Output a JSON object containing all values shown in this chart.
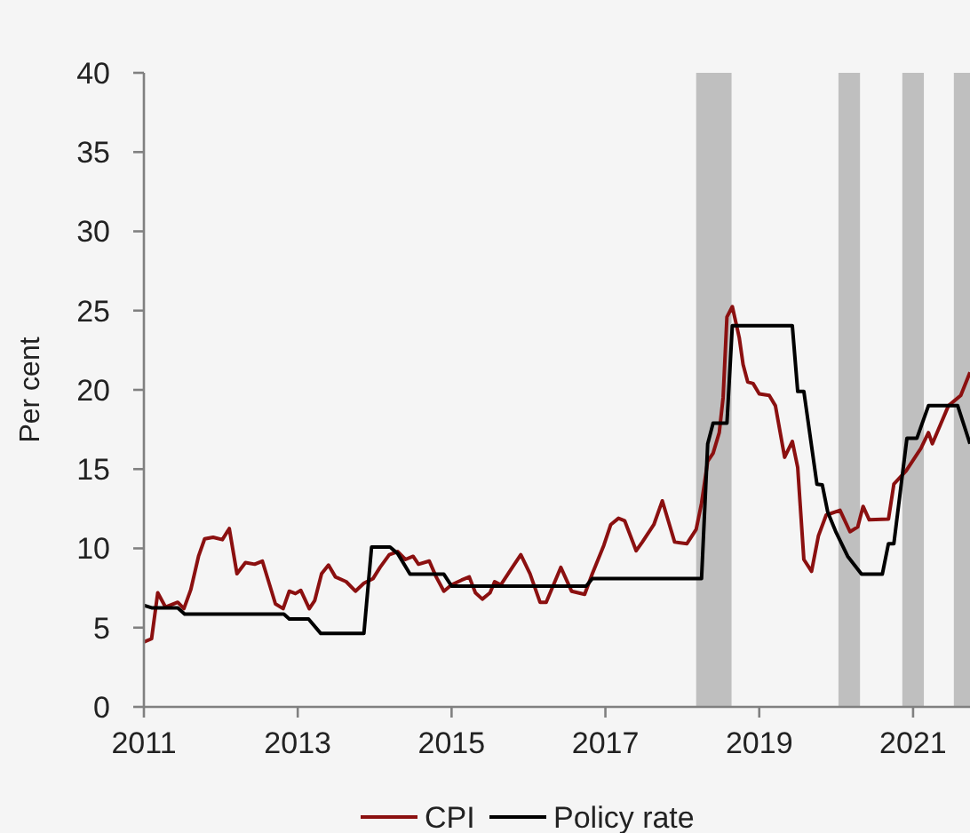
{
  "chart_data": {
    "type": "line",
    "ylabel": "Per cent",
    "xlim": [
      2011,
      2021.74
    ],
    "xticks": [
      2011,
      2013,
      2015,
      2017,
      2019,
      2021
    ],
    "ylim": [
      0,
      40
    ],
    "yticks": [
      0,
      5,
      10,
      15,
      20,
      25,
      30,
      35,
      40
    ],
    "grid": false,
    "legend": "bottom",
    "bands": [
      {
        "axis": "x",
        "from": 2018.18,
        "to": 2018.64,
        "color": "#bfbfbf"
      },
      {
        "axis": "x",
        "from": 2020.03,
        "to": 2020.31,
        "color": "#bfbfbf"
      },
      {
        "axis": "x",
        "from": 2020.86,
        "to": 2021.14,
        "color": "#bfbfbf"
      },
      {
        "axis": "x",
        "from": 2021.53,
        "to": 2021.74,
        "color": "#bfbfbf"
      }
    ],
    "series": [
      {
        "name": "CPI",
        "color": "#8b1010",
        "x": [
          2011.0,
          2011.1,
          2011.18,
          2011.28,
          2011.44,
          2011.52,
          2011.61,
          2011.71,
          2011.79,
          2011.9,
          2012.02,
          2012.11,
          2012.21,
          2012.32,
          2012.44,
          2012.54,
          2012.71,
          2012.81,
          2012.89,
          2012.97,
          2013.04,
          2013.15,
          2013.22,
          2013.31,
          2013.4,
          2013.49,
          2013.63,
          2013.75,
          2013.86,
          2013.98,
          2014.07,
          2014.19,
          2014.3,
          2014.4,
          2014.5,
          2014.57,
          2014.71,
          2014.8,
          2014.9,
          2015.0,
          2015.13,
          2015.23,
          2015.31,
          2015.4,
          2015.5,
          2015.56,
          2015.64,
          2015.79,
          2015.9,
          2016.02,
          2016.15,
          2016.23,
          2016.42,
          2016.56,
          2016.73,
          2016.83,
          2016.98,
          2017.07,
          2017.17,
          2017.25,
          2017.4,
          2017.48,
          2017.63,
          2017.74,
          2017.9,
          2018.06,
          2018.18,
          2018.25,
          2018.33,
          2018.4,
          2018.48,
          2018.53,
          2018.58,
          2018.65,
          2018.74,
          2018.79,
          2018.85,
          2018.92,
          2019.0,
          2019.13,
          2019.21,
          2019.33,
          2019.43,
          2019.5,
          2019.58,
          2019.68,
          2019.77,
          2019.87,
          2020.05,
          2020.18,
          2020.28,
          2020.35,
          2020.43,
          2020.68,
          2020.75,
          2020.91,
          2021.1,
          2021.2,
          2021.25,
          2021.46,
          2021.62,
          2021.74
        ],
        "values": [
          4.1,
          4.3,
          7.2,
          6.3,
          6.6,
          6.2,
          7.4,
          9.5,
          10.6,
          10.7,
          10.55,
          11.25,
          8.4,
          9.1,
          9.0,
          9.2,
          6.5,
          6.2,
          7.3,
          7.15,
          7.35,
          6.2,
          6.7,
          8.4,
          8.95,
          8.2,
          7.9,
          7.3,
          7.8,
          8.1,
          8.8,
          9.6,
          9.8,
          9.3,
          9.5,
          9.0,
          9.2,
          8.2,
          7.3,
          7.7,
          8.0,
          8.2,
          7.2,
          6.8,
          7.2,
          7.9,
          7.7,
          8.8,
          9.6,
          8.4,
          6.6,
          6.6,
          8.8,
          7.3,
          7.1,
          8.4,
          10.2,
          11.5,
          11.9,
          11.75,
          9.85,
          10.4,
          11.5,
          13.0,
          10.4,
          10.3,
          11.2,
          12.85,
          15.5,
          16.0,
          17.3,
          19.5,
          24.6,
          25.25,
          23.3,
          21.6,
          20.5,
          20.4,
          19.75,
          19.65,
          19.0,
          15.75,
          16.75,
          15.1,
          9.3,
          8.55,
          10.8,
          12.1,
          12.4,
          11.05,
          11.35,
          12.65,
          11.8,
          11.85,
          14.05,
          14.9,
          16.3,
          17.3,
          16.6,
          19.0,
          19.65,
          21.1
        ]
      },
      {
        "name": "Policy rate",
        "color": "#000000",
        "x": [
          2011.0,
          2011.1,
          2011.44,
          2011.53,
          2012.82,
          2012.89,
          2013.14,
          2013.3,
          2013.86,
          2013.96,
          2014.2,
          2014.3,
          2014.46,
          2014.9,
          2015.0,
          2016.75,
          2016.83,
          2018.25,
          2018.33,
          2018.4,
          2018.58,
          2018.65,
          2019.43,
          2019.5,
          2019.58,
          2019.75,
          2019.82,
          2019.89,
          2020.0,
          2020.15,
          2020.33,
          2020.6,
          2020.68,
          2020.75,
          2020.92,
          2021.05,
          2021.2,
          2021.58,
          2021.74
        ],
        "values": [
          6.4,
          6.25,
          6.25,
          5.86,
          5.86,
          5.55,
          5.55,
          4.63,
          4.63,
          10.08,
          10.08,
          9.67,
          8.37,
          8.37,
          7.62,
          7.62,
          8.1,
          8.1,
          16.6,
          17.9,
          17.9,
          24.05,
          24.05,
          19.9,
          19.9,
          14.05,
          14.0,
          12.3,
          11.0,
          9.5,
          8.37,
          8.37,
          10.3,
          10.3,
          16.95,
          16.95,
          19.0,
          19.0,
          16.6
        ]
      }
    ]
  }
}
